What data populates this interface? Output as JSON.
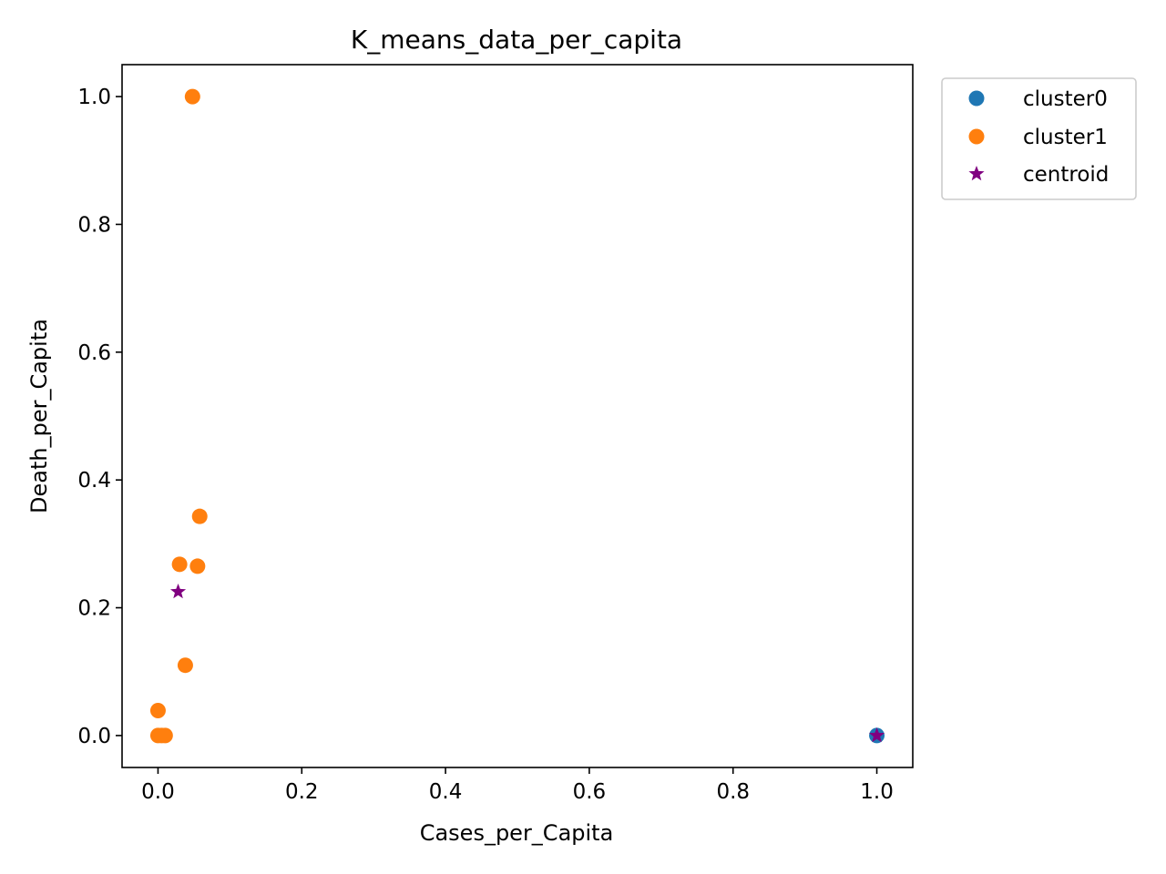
{
  "chart_data": {
    "type": "scatter",
    "title": "K_means_data_per_capita",
    "xlabel": "Cases_per_Capita",
    "ylabel": "Death_per_Capita",
    "xlim": [
      -0.05,
      1.05
    ],
    "ylim": [
      -0.05,
      1.05
    ],
    "xticks": [
      0.0,
      0.2,
      0.4,
      0.6,
      0.8,
      1.0
    ],
    "yticks": [
      0.0,
      0.2,
      0.4,
      0.6,
      0.8,
      1.0
    ],
    "tick_format_decimals": 1,
    "grid": false,
    "legend_position": "outside-upper-right",
    "series": [
      {
        "name": "cluster0",
        "marker": "circle",
        "color": "#1f77b4",
        "points": [
          {
            "x": 1.0,
            "y": 0.0
          }
        ]
      },
      {
        "name": "cluster1",
        "marker": "circle",
        "color": "#ff7f0e",
        "points": [
          {
            "x": 0.048,
            "y": 1.0
          },
          {
            "x": 0.058,
            "y": 0.343
          },
          {
            "x": 0.03,
            "y": 0.268
          },
          {
            "x": 0.055,
            "y": 0.265
          },
          {
            "x": 0.038,
            "y": 0.11
          },
          {
            "x": 0.0,
            "y": 0.039
          },
          {
            "x": 0.0,
            "y": 0.0
          },
          {
            "x": 0.005,
            "y": 0.0
          },
          {
            "x": 0.01,
            "y": 0.0
          }
        ]
      },
      {
        "name": "centroid",
        "marker": "star",
        "color": "#800080",
        "points": [
          {
            "x": 0.028,
            "y": 0.225
          },
          {
            "x": 1.0,
            "y": 0.0
          }
        ]
      }
    ]
  }
}
